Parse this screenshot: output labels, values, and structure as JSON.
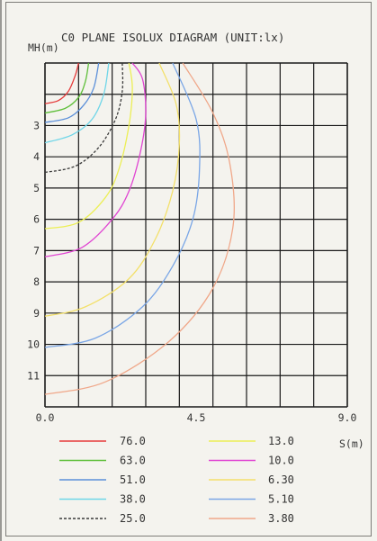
{
  "chart_data": {
    "type": "line",
    "title": "C0 PLANE ISOLUX DIAGRAM (UNIT:lx)",
    "xlabel": "S(m)",
    "ylabel": "MH(m)",
    "xlim": [
      0,
      9.0
    ],
    "ylim": [
      1,
      12
    ],
    "x_ticks": [
      "0.0",
      "4.5",
      "9.0"
    ],
    "y_ticks": [
      "3",
      "4",
      "5",
      "6",
      "7",
      "8",
      "9",
      "10",
      "11"
    ],
    "grid": true,
    "series": [
      {
        "name": "76.0",
        "color": "#e63a3a",
        "points": [
          [
            0,
            2.3
          ],
          [
            0.4,
            2.2
          ],
          [
            0.7,
            1.9
          ],
          [
            0.9,
            1.4
          ],
          [
            1.0,
            1.0
          ]
        ]
      },
      {
        "name": "63.0",
        "color": "#5fbf3a",
        "points": [
          [
            0,
            2.6
          ],
          [
            0.6,
            2.45
          ],
          [
            1.0,
            2.1
          ],
          [
            1.2,
            1.6
          ],
          [
            1.3,
            1.0
          ]
        ]
      },
      {
        "name": "51.0",
        "color": "#5b8fd9",
        "points": [
          [
            0,
            2.9
          ],
          [
            0.7,
            2.75
          ],
          [
            1.15,
            2.35
          ],
          [
            1.45,
            1.8
          ],
          [
            1.6,
            1.0
          ]
        ]
      },
      {
        "name": "38.0",
        "color": "#6fd6e8",
        "points": [
          [
            0,
            3.55
          ],
          [
            0.8,
            3.3
          ],
          [
            1.4,
            2.8
          ],
          [
            1.75,
            2.0
          ],
          [
            1.9,
            1.0
          ]
        ]
      },
      {
        "name": "25.0",
        "color": "#3a3a3a",
        "dash": true,
        "points": [
          [
            0,
            4.5
          ],
          [
            0.9,
            4.3
          ],
          [
            1.6,
            3.7
          ],
          [
            2.1,
            2.8
          ],
          [
            2.3,
            1.9
          ],
          [
            2.3,
            1.0
          ]
        ]
      },
      {
        "name": "13.0",
        "color": "#ecef55",
        "points": [
          [
            0,
            6.3
          ],
          [
            1.0,
            6.1
          ],
          [
            1.8,
            5.3
          ],
          [
            2.2,
            4.4
          ],
          [
            2.5,
            3.0
          ],
          [
            2.6,
            1.8
          ],
          [
            2.5,
            1.0
          ]
        ]
      },
      {
        "name": "10.0",
        "color": "#e045d2",
        "points": [
          [
            0,
            7.2
          ],
          [
            1.1,
            6.9
          ],
          [
            2.0,
            6.0
          ],
          [
            2.5,
            5.1
          ],
          [
            2.85,
            3.8
          ],
          [
            3.0,
            2.6
          ],
          [
            2.9,
            1.5
          ],
          [
            2.6,
            1.0
          ]
        ]
      },
      {
        "name": "6.30",
        "color": "#f3e06a",
        "points": [
          [
            0,
            9.1
          ],
          [
            1.2,
            8.8
          ],
          [
            2.5,
            7.9
          ],
          [
            3.3,
            6.6
          ],
          [
            3.8,
            5.1
          ],
          [
            4.0,
            3.6
          ],
          [
            3.9,
            2.3
          ],
          [
            3.4,
            1.0
          ]
        ]
      },
      {
        "name": "5.10",
        "color": "#7aa6e6",
        "points": [
          [
            0,
            10.1
          ],
          [
            1.5,
            9.8
          ],
          [
            2.9,
            8.8
          ],
          [
            3.8,
            7.5
          ],
          [
            4.4,
            6.0
          ],
          [
            4.6,
            4.4
          ],
          [
            4.5,
            2.8
          ],
          [
            3.8,
            1.0
          ]
        ]
      },
      {
        "name": "3.80",
        "color": "#f0a88a",
        "points": [
          [
            0,
            11.6
          ],
          [
            1.8,
            11.2
          ],
          [
            3.7,
            9.9
          ],
          [
            5.0,
            8.2
          ],
          [
            5.6,
            6.2
          ],
          [
            5.5,
            4.2
          ],
          [
            5.0,
            2.6
          ],
          [
            4.1,
            1.0
          ]
        ]
      }
    ],
    "legend_position": "bottom"
  }
}
